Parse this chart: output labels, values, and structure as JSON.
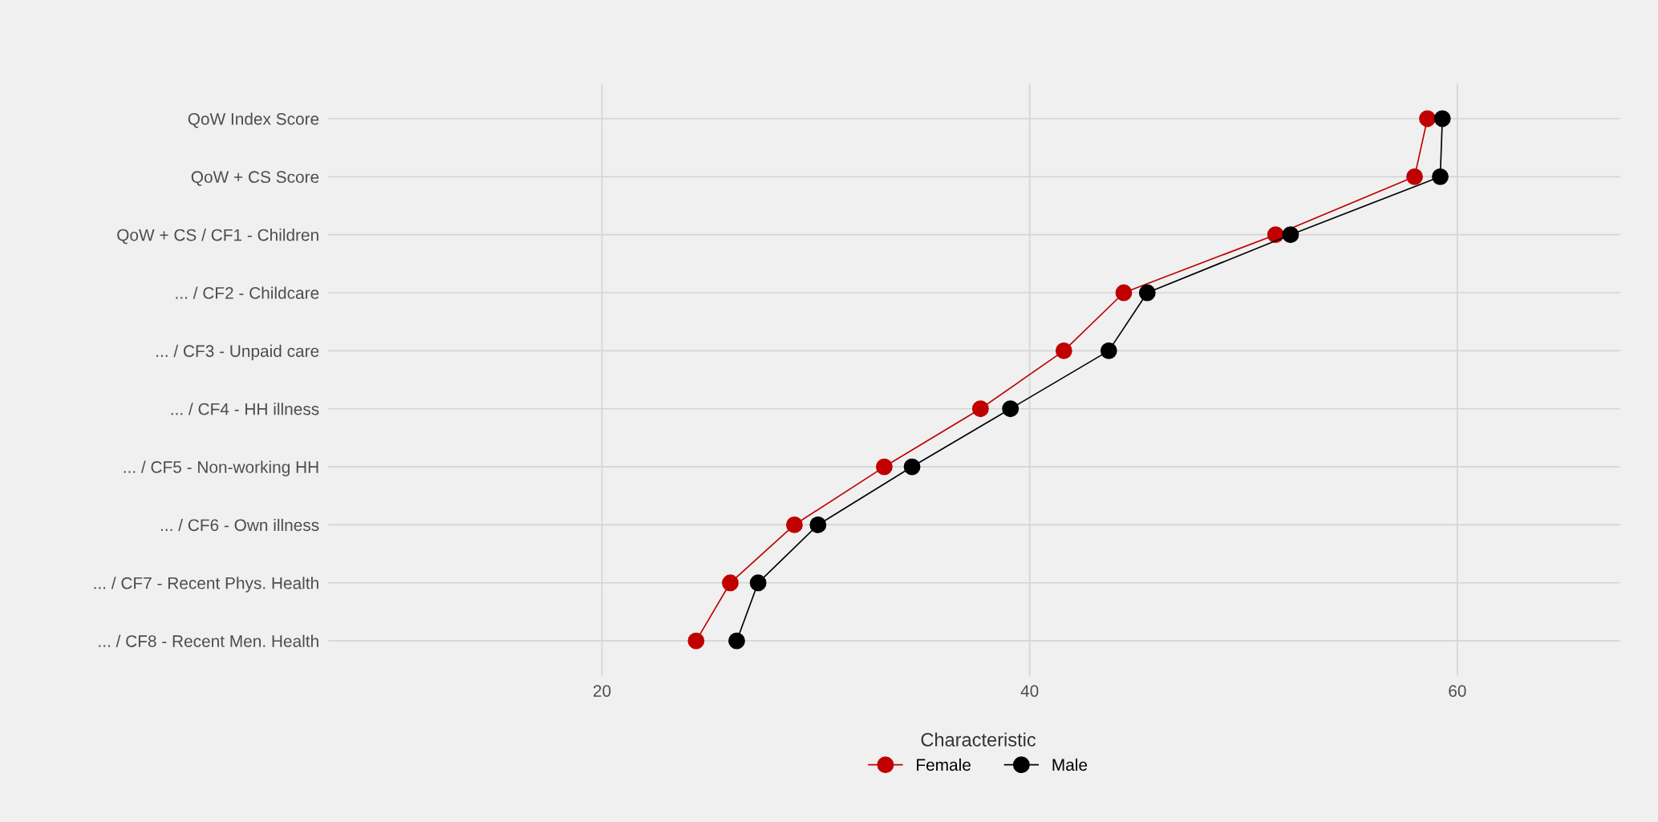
{
  "chart_data": {
    "type": "line",
    "orientation": "horizontal",
    "legend_title": "Characteristic",
    "categories": [
      "QoW Index Score",
      "QoW + CS Score",
      "QoW + CS / CF1 - Children",
      "... / CF2 - Childcare",
      "... / CF3 - Unpaid care",
      "... / CF4 - HH illness",
      "... / CF5 - Non-working HH",
      "... / CF6 - Own illness",
      "... / CF7 - Recent Phys. Health",
      "... / CF8 - Recent Men. Health"
    ],
    "series": [
      {
        "name": "Female",
        "color": "#c00000",
        "values": [
          58.6,
          58.0,
          51.5,
          44.4,
          41.6,
          37.7,
          33.2,
          29.0,
          26.0,
          24.4
        ]
      },
      {
        "name": "Male",
        "color": "#000000",
        "values": [
          59.3,
          59.2,
          52.2,
          45.5,
          43.7,
          39.1,
          34.5,
          30.1,
          27.3,
          26.3
        ]
      }
    ],
    "xlim": [
      7.2,
      67.6
    ],
    "xticks": [
      20,
      40,
      60
    ],
    "grid": true,
    "legend": "bottom",
    "marker": "circle",
    "line_style": "solid"
  }
}
